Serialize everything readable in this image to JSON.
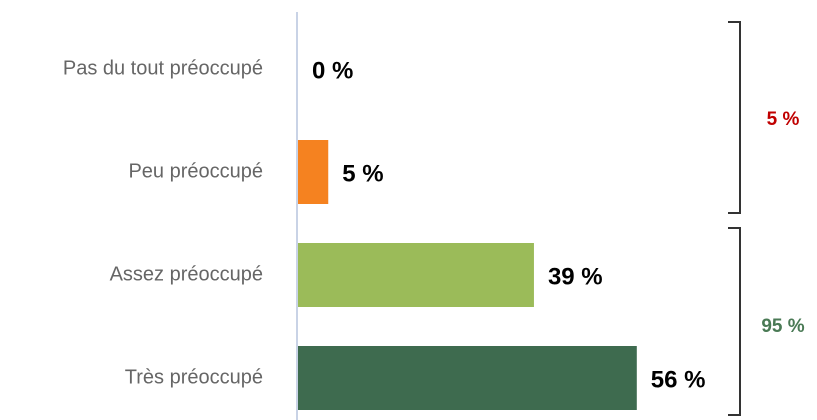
{
  "chart_data": {
    "type": "bar",
    "orientation": "horizontal",
    "categories": [
      "Pas du tout préoccupé",
      "Peu préoccupé",
      "Assez préoccupé",
      "Très préoccupé"
    ],
    "values": [
      0,
      5,
      39,
      56
    ],
    "value_labels": [
      "0 %",
      "5 %",
      "39 %",
      "56 %"
    ],
    "colors": [
      "#f58220",
      "#f58220",
      "#9bbb59",
      "#3e6b4f"
    ],
    "xlim": [
      0,
      100
    ],
    "group_totals": {
      "values": [
        5,
        95
      ],
      "value_labels": [
        "5 %",
        "95 %"
      ],
      "colors": [
        "#c00000",
        "#4a7a55"
      ]
    }
  }
}
